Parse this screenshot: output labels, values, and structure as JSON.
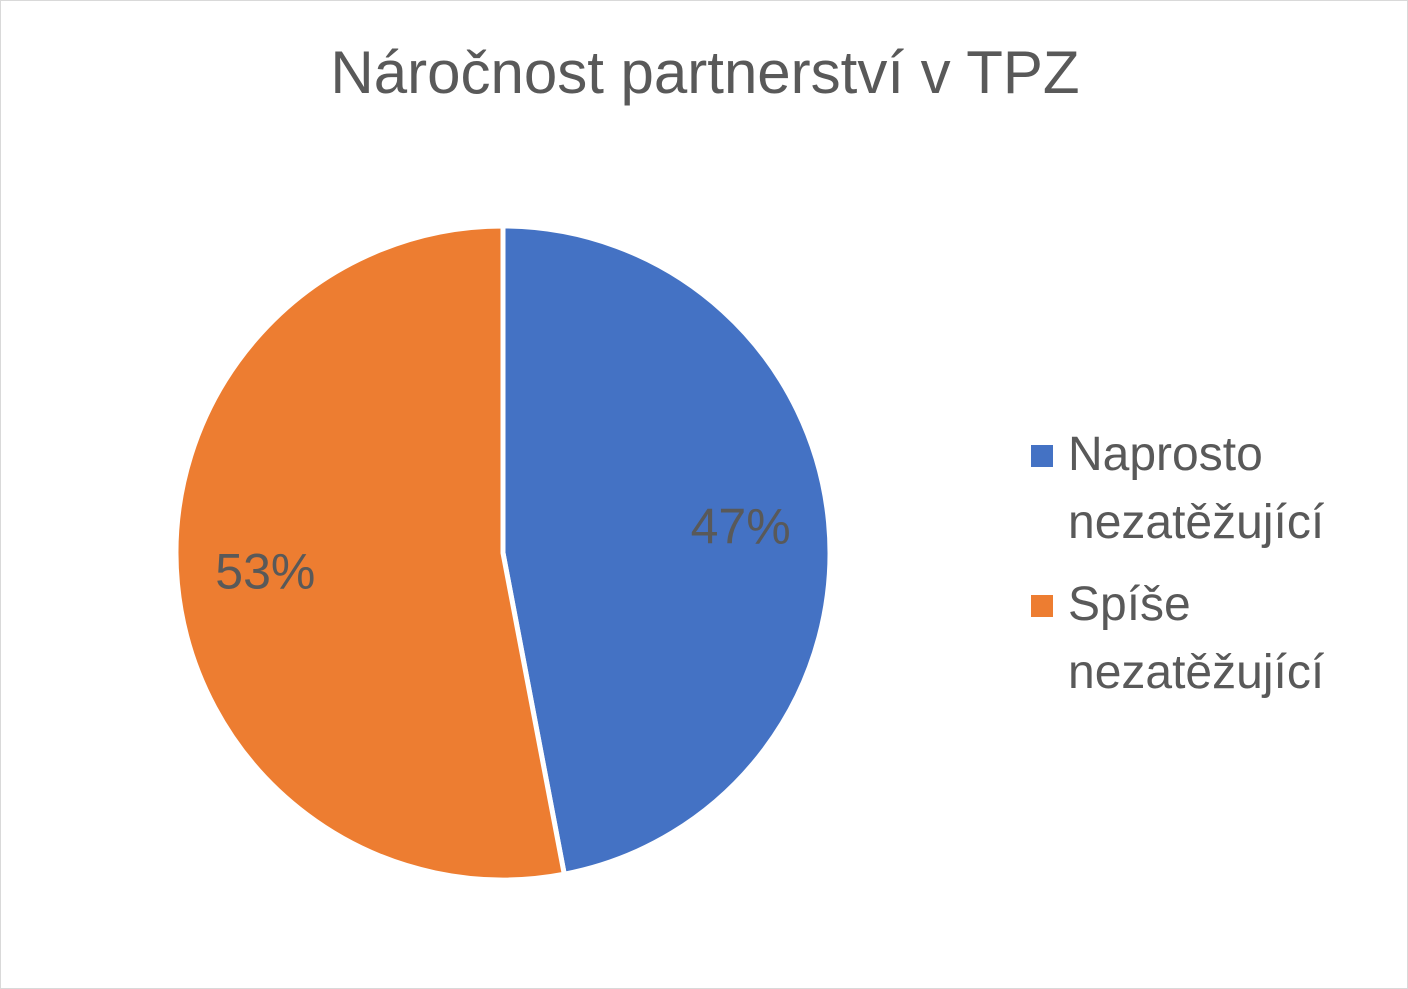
{
  "chart_data": {
    "type": "pie",
    "title": "Náročnost partnerství v TPZ",
    "categories": [
      "Naprosto nezatěžující",
      "Spíše nezatěžující"
    ],
    "values": [
      47,
      53
    ],
    "value_labels": [
      "47%",
      "53%"
    ],
    "colors": [
      "#4472c4",
      "#ed7d31"
    ],
    "legend": "right"
  }
}
